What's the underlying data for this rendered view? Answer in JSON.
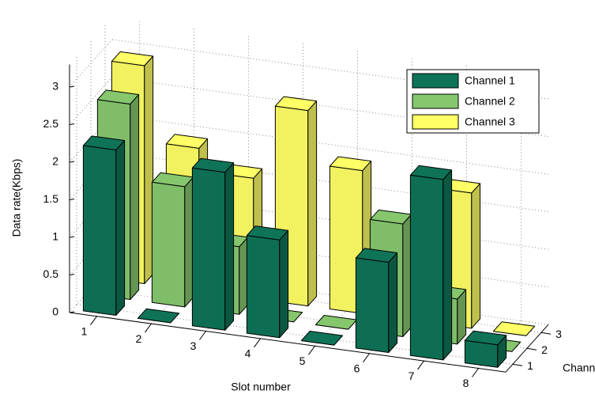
{
  "chart_data": {
    "type": "bar3d",
    "xlabel": "Slot number",
    "ylabel": "Channels",
    "zlabel": "Data rate(Kbps)",
    "categories": [
      "1",
      "2",
      "3",
      "4",
      "5",
      "6",
      "7",
      "8"
    ],
    "channels": [
      "1",
      "2",
      "3"
    ],
    "series": [
      {
        "name": "Channel 1",
        "color": "#0f7457",
        "values": [
          2.2,
          0,
          2.1,
          1.3,
          0,
          1.2,
          2.4,
          0.3
        ]
      },
      {
        "name": "Channel 2",
        "color": "#86c76e",
        "values": [
          2.6,
          1.6,
          0.9,
          0,
          0,
          1.5,
          0.6,
          0
        ]
      },
      {
        "name": "Channel 3",
        "color": "#ffff66",
        "values": [
          2.9,
          1.9,
          1.6,
          2.6,
          1.9,
          0,
          1.8,
          0
        ]
      }
    ],
    "zlim": [
      0,
      3.3
    ],
    "zticks": [
      0,
      0.5,
      1,
      1.5,
      2,
      2.5,
      3
    ],
    "grid": true
  }
}
